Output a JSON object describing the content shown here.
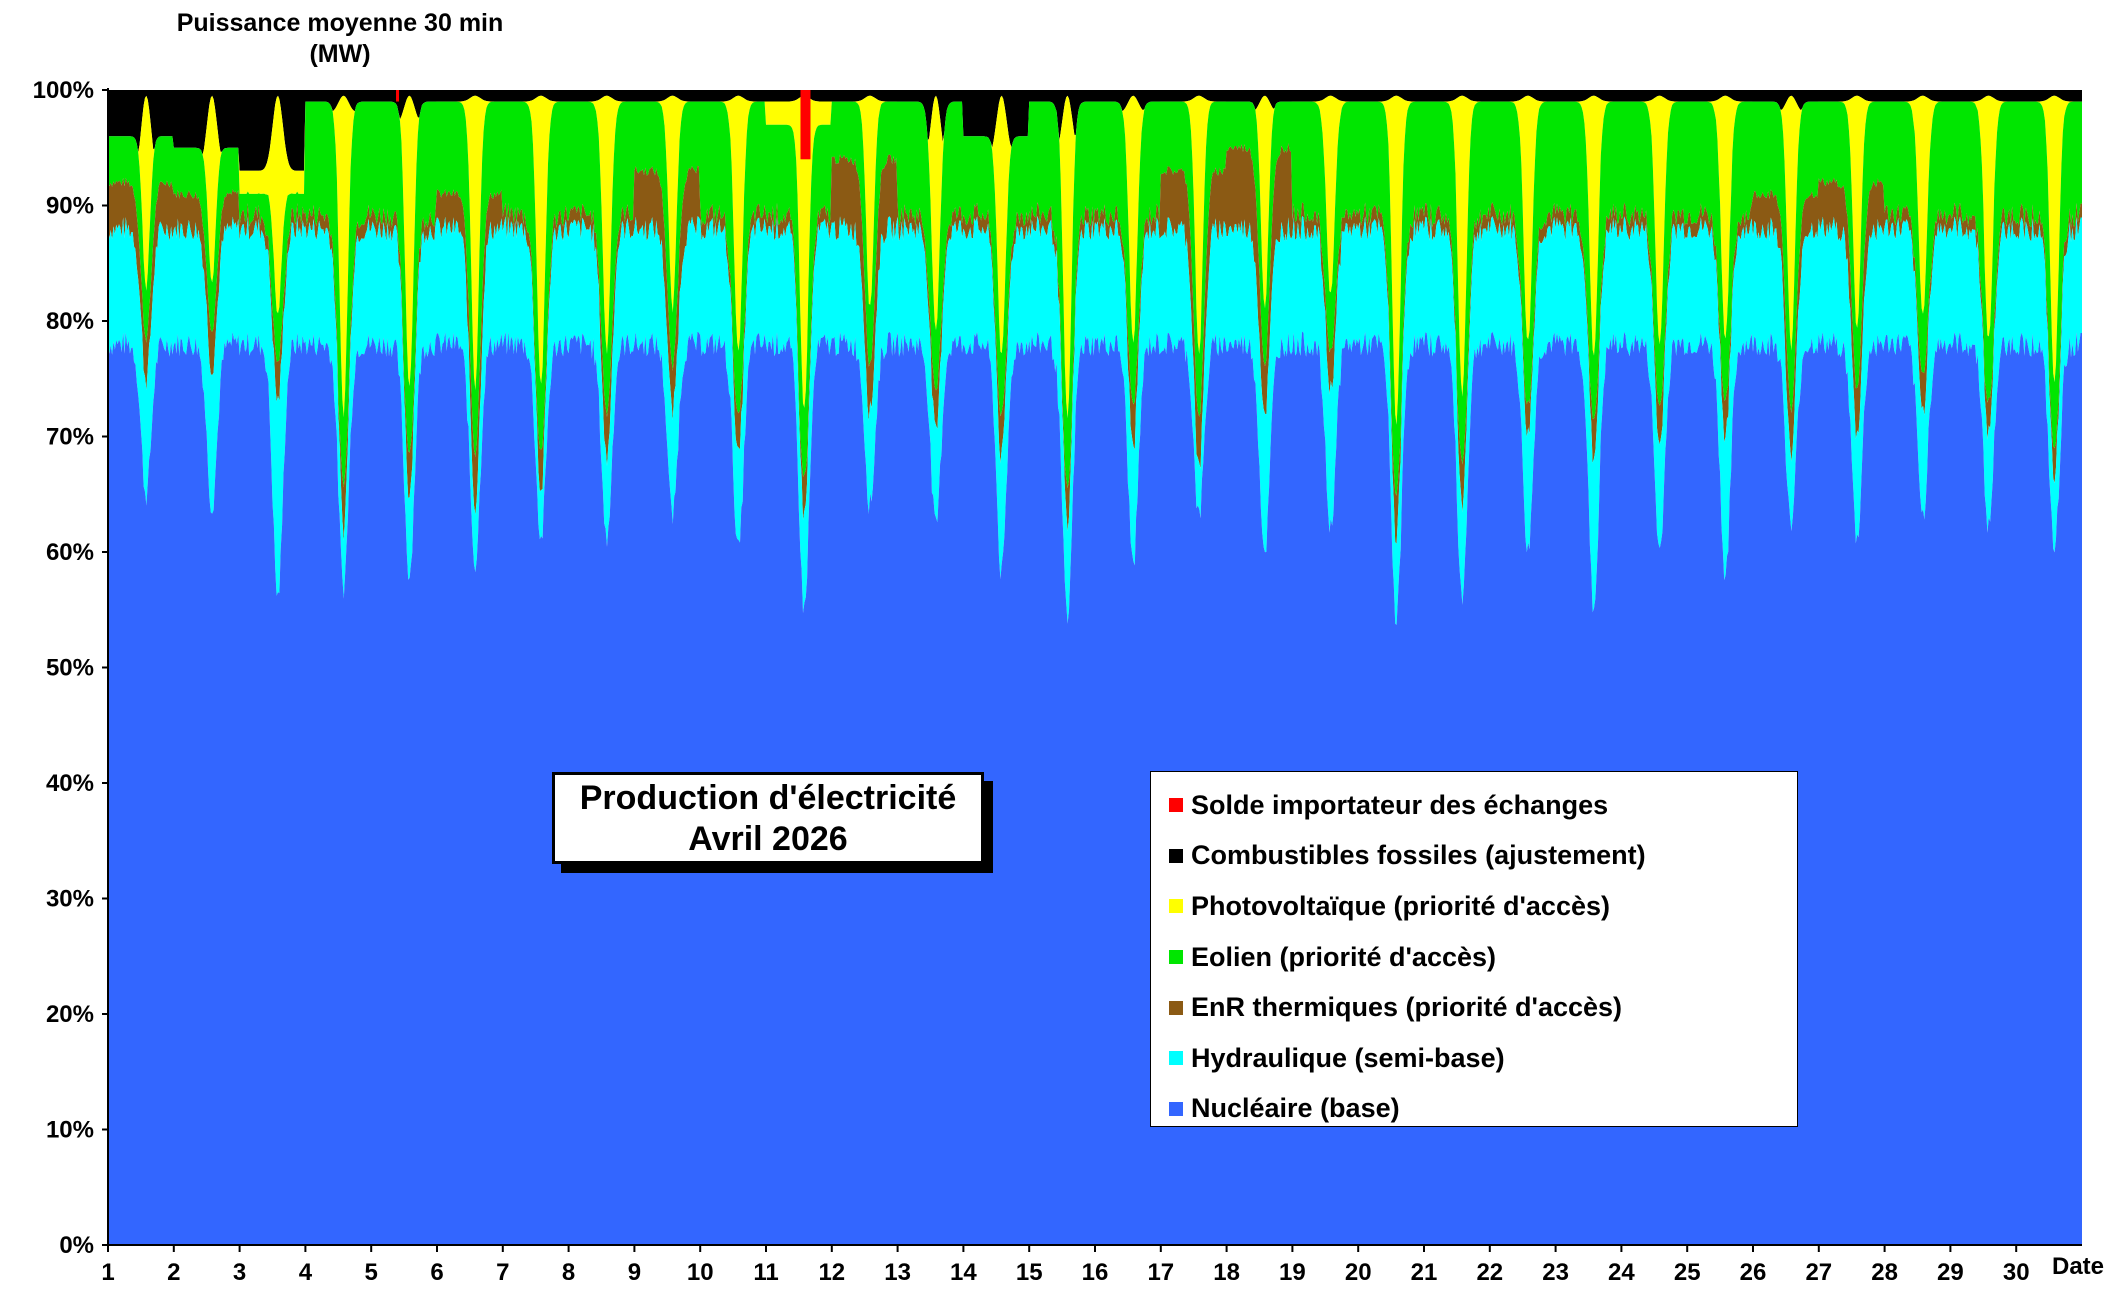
{
  "chart_data": {
    "type": "area",
    "stacked": true,
    "title": "Production d'électricité",
    "subtitle": "Avril 2026",
    "ylabel": "Puissance moyenne 30 min",
    "ylabel_unit": "(MW)",
    "xlabel": "Date",
    "ylim": [
      0,
      100
    ],
    "y_unit": "%",
    "yticks": [
      "0%",
      "10%",
      "20%",
      "30%",
      "40%",
      "50%",
      "60%",
      "70%",
      "80%",
      "90%",
      "100%"
    ],
    "xticks": [
      "1",
      "2",
      "3",
      "4",
      "5",
      "6",
      "7",
      "8",
      "9",
      "10",
      "11",
      "12",
      "13",
      "14",
      "15",
      "16",
      "17",
      "18",
      "19",
      "20",
      "21",
      "22",
      "23",
      "24",
      "25",
      "26",
      "27",
      "28",
      "29",
      "30"
    ],
    "x_range": [
      1,
      31
    ],
    "grid": false,
    "legend_position": "center-right",
    "series": [
      {
        "name": "Solde importateur des échanges",
        "color": "#ff0000"
      },
      {
        "name": "Combustibles fossiles (ajustement)",
        "color": "#000000"
      },
      {
        "name": "Photovoltaïque (priorité d'accès)",
        "color": "#ffff00"
      },
      {
        "name": "Eolien (priorité d'accès)",
        "color": "#00e600"
      },
      {
        "name": "EnR thermiques (priorité d'accès)",
        "color": "#8b5a14"
      },
      {
        "name": "Hydraulique (semi-base)",
        "color": "#00ffff"
      },
      {
        "name": "Nucléaire (base)",
        "color": "#3366ff"
      }
    ],
    "nuclear_daily_min_pct": [
      65,
      64,
      56,
      57,
      58,
      59,
      61,
      61,
      63,
      60,
      55,
      64,
      62,
      58,
      54,
      59,
      63,
      60,
      62,
      54,
      56,
      60,
      55,
      60,
      58,
      62,
      61,
      63,
      62,
      60
    ],
    "hydro_daily_min_top_pct": [
      75,
      76,
      73,
      62,
      65,
      64,
      65,
      68,
      72,
      68,
      63,
      72,
      70,
      68,
      62,
      69,
      67,
      72,
      74,
      61,
      64,
      70,
      68,
      69,
      70,
      68,
      70,
      72,
      70,
      66
    ],
    "enr_thermal_top_pct": [
      92,
      91,
      88,
      84,
      84,
      91,
      84,
      89,
      93,
      86,
      80,
      94,
      88,
      87,
      80,
      88,
      93,
      95,
      89,
      83,
      84,
      80,
      85,
      86,
      84,
      91,
      92,
      87,
      82,
      78
    ],
    "wind_top_night_pct": [
      96,
      95,
      91,
      99,
      99,
      99,
      99,
      99,
      99,
      99,
      97,
      99,
      99,
      96,
      99,
      99,
      99,
      99,
      99,
      99,
      99,
      99,
      99,
      99,
      99,
      99,
      99,
      99,
      99,
      99
    ],
    "pv_top_pct": [
      99.5,
      99.5,
      99.5,
      99.5,
      99.5,
      99.5,
      99.5,
      99.5,
      99.5,
      99.5,
      99.5,
      99.5,
      99.5,
      99.5,
      99.5,
      99.5,
      99.5,
      99.5,
      99.5,
      99.5,
      99.5,
      99.5,
      99.5,
      99.5,
      99.5,
      99.5,
      99.5,
      99.5,
      99.5,
      99.5
    ],
    "fossil_dip_pct": [
      92,
      93,
      93,
      98,
      97,
      99,
      99,
      99,
      99,
      99,
      99,
      99,
      93,
      94,
      94,
      98,
      99,
      98,
      99,
      99,
      99,
      99,
      99,
      99,
      99,
      98,
      99,
      99,
      99,
      99
    ],
    "import_spikes": [
      {
        "x": 5.4,
        "value": 1.0
      },
      {
        "x": 11.6,
        "value": 6.0
      }
    ]
  }
}
